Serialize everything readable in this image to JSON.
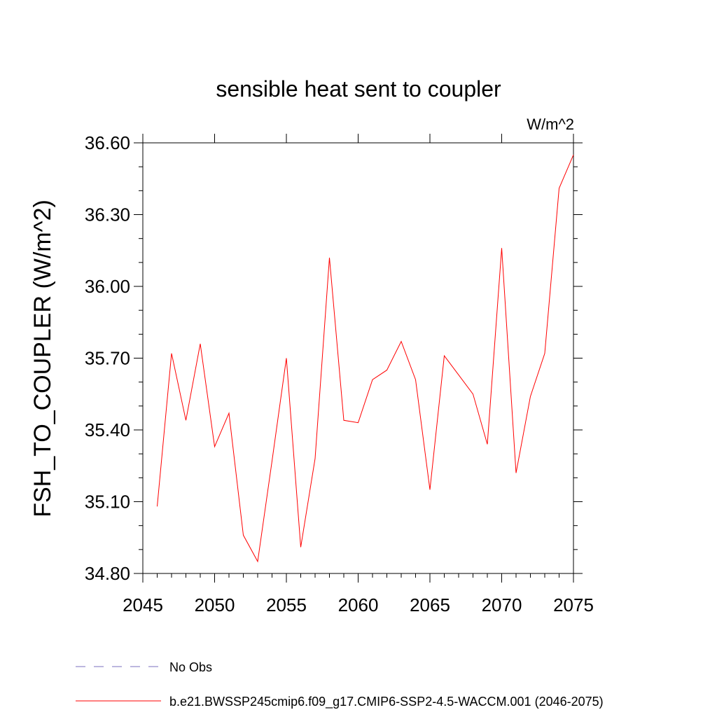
{
  "colors": {
    "series": "#ff0000",
    "obs": "#7b6fbf",
    "axis": "#000000",
    "background": "#ffffff"
  },
  "chart_data": {
    "type": "line",
    "title": "sensible heat sent to coupler",
    "units_label": "W/m^2",
    "ylabel": "FSH_TO_COUPLER  (W/m^2)",
    "xlabel": "",
    "xlim": [
      2045,
      2075
    ],
    "ylim": [
      34.8,
      36.6
    ],
    "x_ticks": [
      "2045",
      "2050",
      "2055",
      "2060",
      "2065",
      "2070",
      "2075"
    ],
    "y_ticks": [
      "34.80",
      "35.10",
      "35.40",
      "35.70",
      "36.00",
      "36.30",
      "36.60"
    ],
    "grid": false,
    "series": [
      {
        "name": "b.e21.BWSSP245cmip6.f09_g17.CMIP6-SSP2-4.5-WACCM.001 (2046-2075)",
        "x": [
          2046,
          2047,
          2048,
          2049,
          2050,
          2051,
          2052,
          2053,
          2054,
          2055,
          2056,
          2057,
          2058,
          2059,
          2060,
          2061,
          2062,
          2063,
          2064,
          2065,
          2066,
          2067,
          2068,
          2069,
          2070,
          2071,
          2072,
          2073,
          2074,
          2075
        ],
        "values": [
          35.08,
          35.72,
          35.44,
          35.76,
          35.33,
          35.47,
          34.96,
          34.85,
          35.27,
          35.7,
          34.91,
          35.28,
          36.12,
          35.44,
          35.43,
          35.61,
          35.65,
          35.77,
          35.61,
          35.15,
          35.71,
          35.63,
          35.55,
          35.34,
          36.16,
          35.22,
          35.54,
          35.72,
          36.41,
          36.55
        ]
      }
    ],
    "legend": {
      "position": "bottom",
      "entries": [
        "No Obs",
        "b.e21.BWSSP245cmip6.f09_g17.CMIP6-SSP2-4.5-WACCM.001 (2046-2075)"
      ]
    }
  }
}
